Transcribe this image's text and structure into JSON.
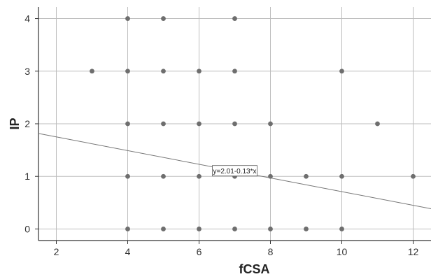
{
  "chart_data": {
    "type": "scatter",
    "title": "",
    "xlabel": "fCSA",
    "ylabel": "IP",
    "xlim": [
      1.5,
      12.5
    ],
    "ylim": [
      -0.22,
      4.22
    ],
    "xticks": [
      "2",
      "4",
      "6",
      "8",
      "10",
      "12"
    ],
    "yticks": [
      "0",
      "1",
      "2",
      "3",
      "4"
    ],
    "grid": true,
    "points": [
      {
        "x": 3,
        "y": 3
      },
      {
        "x": 4,
        "y": 4
      },
      {
        "x": 4,
        "y": 3
      },
      {
        "x": 4,
        "y": 2
      },
      {
        "x": 4,
        "y": 1
      },
      {
        "x": 4,
        "y": 0
      },
      {
        "x": 5,
        "y": 4
      },
      {
        "x": 5,
        "y": 3
      },
      {
        "x": 5,
        "y": 2
      },
      {
        "x": 5,
        "y": 1
      },
      {
        "x": 5,
        "y": 0
      },
      {
        "x": 6,
        "y": 3
      },
      {
        "x": 6,
        "y": 2
      },
      {
        "x": 6,
        "y": 1
      },
      {
        "x": 6,
        "y": 0
      },
      {
        "x": 7,
        "y": 4
      },
      {
        "x": 7,
        "y": 3
      },
      {
        "x": 7,
        "y": 2
      },
      {
        "x": 7,
        "y": 1
      },
      {
        "x": 7,
        "y": 0
      },
      {
        "x": 8,
        "y": 2
      },
      {
        "x": 8,
        "y": 1
      },
      {
        "x": 8,
        "y": 0
      },
      {
        "x": 9,
        "y": 1
      },
      {
        "x": 9,
        "y": 0
      },
      {
        "x": 10,
        "y": 3
      },
      {
        "x": 10,
        "y": 1
      },
      {
        "x": 10,
        "y": 0
      },
      {
        "x": 11,
        "y": 2
      },
      {
        "x": 12,
        "y": 1
      }
    ],
    "fit_line": {
      "intercept": 2.01,
      "slope": -0.13,
      "label": "y=2.01-0.13*x",
      "label_at": {
        "x": 7,
        "y": 1.1
      }
    },
    "colors": {
      "points": "#6e6e6e",
      "grid": "#bdbdbd",
      "axis": "#333333",
      "line": "#777777"
    }
  }
}
